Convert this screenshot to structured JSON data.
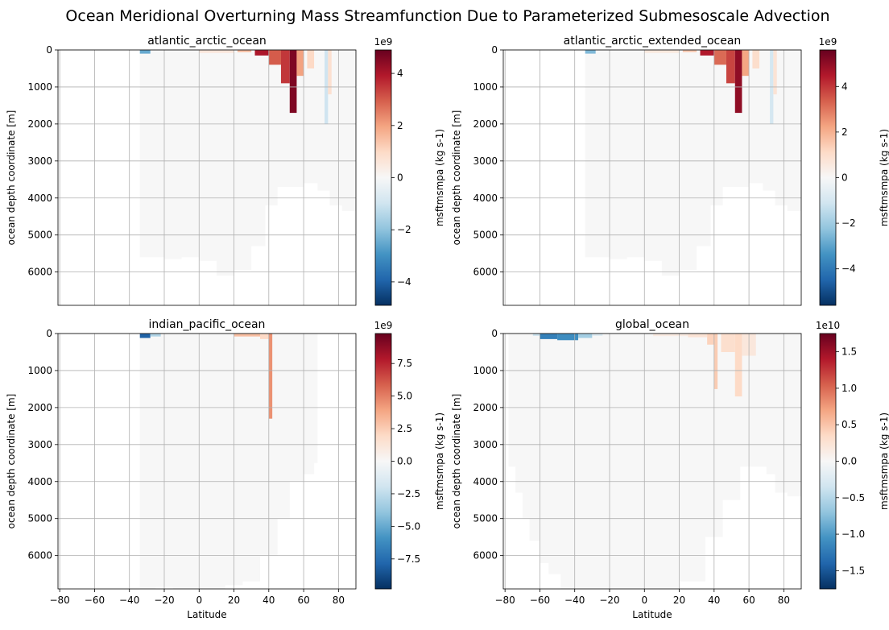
{
  "figure": {
    "suptitle": "Ocean Meridional Overturning Mass Streamfunction Due to Parameterized Submesoscale Advection"
  },
  "colormap": {
    "name": "RdBu_r",
    "stops": [
      "#053061",
      "#2166ac",
      "#4393c3",
      "#92c5de",
      "#d1e5f0",
      "#f7f7f7",
      "#fddbc7",
      "#f4a582",
      "#d6604d",
      "#b2182b",
      "#67001f"
    ]
  },
  "chart_data": [
    {
      "type": "heatmap",
      "title": "atlantic_arctic_ocean",
      "xlabel": "",
      "ylabel": "ocean depth coordinate [m]",
      "xlim": [
        -81,
        90
      ],
      "ylim": [
        6900,
        0
      ],
      "xticks": [],
      "yticks": [
        "0",
        "1000",
        "2000",
        "3000",
        "4000",
        "5000",
        "6000"
      ],
      "grid": true,
      "domain": {
        "x_start": -34,
        "x_end": 90,
        "bottom": [
          [
            -34,
            5600
          ],
          [
            -20,
            5600
          ],
          [
            -10,
            5650
          ],
          [
            0,
            5600
          ],
          [
            10,
            5700
          ],
          [
            20,
            6100
          ],
          [
            30,
            5950
          ],
          [
            38,
            5300
          ],
          [
            45,
            4200
          ],
          [
            50,
            3700
          ],
          [
            60,
            3700
          ],
          [
            68,
            3600
          ],
          [
            75,
            3800
          ],
          [
            82,
            4200
          ],
          [
            90,
            4350
          ]
        ]
      },
      "features": [
        {
          "x": [
            -34,
            -28
          ],
          "depth": [
            0,
            100
          ],
          "value": -2500000000.0
        },
        {
          "x": [
            0,
            20
          ],
          "depth": [
            0,
            80
          ],
          "value": 600000000.0
        },
        {
          "x": [
            22,
            30
          ],
          "depth": [
            0,
            60
          ],
          "value": 1500000000.0
        },
        {
          "x": [
            32,
            40
          ],
          "depth": [
            0,
            150
          ],
          "value": 4000000000.0
        },
        {
          "x": [
            40,
            47
          ],
          "depth": [
            0,
            400
          ],
          "value": 3000000000.0
        },
        {
          "x": [
            47,
            52
          ],
          "depth": [
            0,
            900
          ],
          "value": 3500000000.0
        },
        {
          "x": [
            52,
            56
          ],
          "depth": [
            0,
            1700
          ],
          "value": 4600000000.0
        },
        {
          "x": [
            56,
            60
          ],
          "depth": [
            0,
            700
          ],
          "value": 2000000000.0
        },
        {
          "x": [
            62,
            66
          ],
          "depth": [
            0,
            500
          ],
          "value": 1000000000.0
        },
        {
          "x": [
            72,
            74
          ],
          "depth": [
            0,
            2000
          ],
          "value": -1000000000.0
        },
        {
          "x": [
            74,
            76
          ],
          "depth": [
            0,
            1200
          ],
          "value": 800000000.0
        }
      ],
      "colorbar": {
        "label": "msftmsmpa (kg s-1)",
        "exponent": "1e9",
        "vmin": -4900000000.0,
        "vmax": 4900000000.0,
        "ticks": [
          -4,
          -2,
          0,
          2,
          4
        ],
        "ticklabels": [
          "−4",
          "−2",
          "0",
          "2",
          "4"
        ]
      }
    },
    {
      "type": "heatmap",
      "title": "atlantic_arctic_extended_ocean",
      "xlabel": "",
      "ylabel": "ocean depth coordinate [m]",
      "xlim": [
        -81,
        90
      ],
      "ylim": [
        6900,
        0
      ],
      "xticks": [],
      "yticks": [
        "0",
        "1000",
        "2000",
        "3000",
        "4000",
        "5000",
        "6000"
      ],
      "grid": true,
      "domain": {
        "x_start": -34,
        "x_end": 90,
        "bottom": [
          [
            -34,
            5600
          ],
          [
            -20,
            5600
          ],
          [
            -10,
            5650
          ],
          [
            0,
            5600
          ],
          [
            10,
            5700
          ],
          [
            20,
            6100
          ],
          [
            30,
            5950
          ],
          [
            38,
            5300
          ],
          [
            45,
            4200
          ],
          [
            50,
            3700
          ],
          [
            60,
            3700
          ],
          [
            68,
            3600
          ],
          [
            75,
            3800
          ],
          [
            82,
            4200
          ],
          [
            90,
            4350
          ]
        ]
      },
      "features": [
        {
          "x": [
            -34,
            -28
          ],
          "depth": [
            0,
            100
          ],
          "value": -2500000000.0
        },
        {
          "x": [
            0,
            20
          ],
          "depth": [
            0,
            80
          ],
          "value": 600000000.0
        },
        {
          "x": [
            22,
            30
          ],
          "depth": [
            0,
            60
          ],
          "value": 1500000000.0
        },
        {
          "x": [
            32,
            40
          ],
          "depth": [
            0,
            150
          ],
          "value": 4500000000.0
        },
        {
          "x": [
            40,
            47
          ],
          "depth": [
            0,
            400
          ],
          "value": 3200000000.0
        },
        {
          "x": [
            47,
            52
          ],
          "depth": [
            0,
            900
          ],
          "value": 3800000000.0
        },
        {
          "x": [
            52,
            56
          ],
          "depth": [
            0,
            1700
          ],
          "value": 5000000000.0
        },
        {
          "x": [
            56,
            60
          ],
          "depth": [
            0,
            700
          ],
          "value": 2200000000.0
        },
        {
          "x": [
            62,
            66
          ],
          "depth": [
            0,
            500
          ],
          "value": 1000000000.0
        },
        {
          "x": [
            72,
            74
          ],
          "depth": [
            0,
            2000
          ],
          "value": -1000000000.0
        },
        {
          "x": [
            74,
            76
          ],
          "depth": [
            0,
            1200
          ],
          "value": 800000000.0
        }
      ],
      "colorbar": {
        "label": "msftmsmpa (kg s-1)",
        "exponent": "1e9",
        "vmin": -5600000000.0,
        "vmax": 5600000000.0,
        "ticks": [
          -4,
          -2,
          0,
          2,
          4
        ],
        "ticklabels": [
          "−4",
          "−2",
          "0",
          "2",
          "4"
        ]
      }
    },
    {
      "type": "heatmap",
      "title": "indian_pacific_ocean",
      "xlabel": "Latitude",
      "ylabel": "ocean depth coordinate [m]",
      "xlim": [
        -81,
        90
      ],
      "ylim": [
        6900,
        0
      ],
      "xticks": [
        -80,
        -60,
        -40,
        -20,
        0,
        20,
        40,
        60,
        80
      ],
      "xticklabels": [
        "−80",
        "−60",
        "−40",
        "−20",
        "0",
        "20",
        "40",
        "60",
        "80"
      ],
      "yticks": [
        "0",
        "1000",
        "2000",
        "3000",
        "4000",
        "5000",
        "6000"
      ],
      "grid": true,
      "domain": {
        "x_start": -34,
        "x_end": 68,
        "bottom": [
          [
            -34,
            6900
          ],
          [
            -25,
            6900
          ],
          [
            -15,
            6850
          ],
          [
            -5,
            6900
          ],
          [
            5,
            6900
          ],
          [
            15,
            6900
          ],
          [
            25,
            6800
          ],
          [
            35,
            6700
          ],
          [
            45,
            6000
          ],
          [
            52,
            5000
          ],
          [
            60,
            4000
          ],
          [
            66,
            3800
          ],
          [
            68,
            3500
          ]
        ]
      },
      "features": [
        {
          "x": [
            -34,
            -28
          ],
          "depth": [
            0,
            120
          ],
          "value": -8000000000.0
        },
        {
          "x": [
            -28,
            -22
          ],
          "depth": [
            0,
            80
          ],
          "value": -3000000000.0
        },
        {
          "x": [
            20,
            35
          ],
          "depth": [
            0,
            80
          ],
          "value": 3000000000.0
        },
        {
          "x": [
            35,
            40
          ],
          "depth": [
            0,
            150
          ],
          "value": 2000000000.0
        },
        {
          "x": [
            40,
            42
          ],
          "depth": [
            0,
            2300
          ],
          "value": 4500000000.0
        }
      ],
      "colorbar": {
        "label": "msftmsmpa (kg s-1)",
        "exponent": "1e9",
        "vmin": -9800000000.0,
        "vmax": 9800000000.0,
        "ticks": [
          -7.5,
          -5.0,
          -2.5,
          0.0,
          2.5,
          5.0,
          7.5
        ],
        "ticklabels": [
          "−7.5",
          "−5.0",
          "−2.5",
          "0.0",
          "2.5",
          "5.0",
          "7.5"
        ]
      }
    },
    {
      "type": "heatmap",
      "title": "global_ocean",
      "xlabel": "Latitude",
      "ylabel": "ocean depth coordinate [m]",
      "xlim": [
        -81,
        90
      ],
      "ylim": [
        6900,
        0
      ],
      "xticks": [
        -80,
        -60,
        -40,
        -20,
        0,
        20,
        40,
        60,
        80
      ],
      "xticklabels": [
        "−80",
        "−60",
        "−40",
        "−20",
        "0",
        "20",
        "40",
        "60",
        "80"
      ],
      "yticks": [
        "0",
        "1000",
        "2000",
        "3000",
        "4000",
        "5000",
        "6000"
      ],
      "grid": true,
      "domain": {
        "x_start": -78,
        "x_end": 90,
        "bottom": [
          [
            -78,
            2500
          ],
          [
            -74,
            3600
          ],
          [
            -70,
            4300
          ],
          [
            -66,
            5000
          ],
          [
            -60,
            5600
          ],
          [
            -55,
            6200
          ],
          [
            -48,
            6500
          ],
          [
            -40,
            6900
          ],
          [
            -20,
            6900
          ],
          [
            0,
            6900
          ],
          [
            20,
            6900
          ],
          [
            35,
            6700
          ],
          [
            45,
            5500
          ],
          [
            55,
            4500
          ],
          [
            62,
            3600
          ],
          [
            70,
            3600
          ],
          [
            75,
            3800
          ],
          [
            82,
            4300
          ],
          [
            90,
            4400
          ]
        ]
      },
      "features": [
        {
          "x": [
            -64,
            -60
          ],
          "depth": [
            0,
            60
          ],
          "value": -4000000000.0
        },
        {
          "x": [
            -60,
            -50
          ],
          "depth": [
            0,
            150
          ],
          "value": -12000000000.0
        },
        {
          "x": [
            -50,
            -38
          ],
          "depth": [
            0,
            180
          ],
          "value": -11000000000.0
        },
        {
          "x": [
            -38,
            -30
          ],
          "depth": [
            0,
            120
          ],
          "value": -6000000000.0
        },
        {
          "x": [
            -30,
            -24
          ],
          "depth": [
            0,
            60
          ],
          "value": -2500000000.0
        },
        {
          "x": [
            5,
            25
          ],
          "depth": [
            0,
            70
          ],
          "value": 1500000000.0
        },
        {
          "x": [
            25,
            36
          ],
          "depth": [
            0,
            100
          ],
          "value": 2500000000.0
        },
        {
          "x": [
            36,
            40
          ],
          "depth": [
            0,
            300
          ],
          "value": 4000000000.0
        },
        {
          "x": [
            40,
            42
          ],
          "depth": [
            0,
            1500
          ],
          "value": 4500000000.0
        },
        {
          "x": [
            44,
            52
          ],
          "depth": [
            0,
            500
          ],
          "value": 3000000000.0
        },
        {
          "x": [
            52,
            56
          ],
          "depth": [
            0,
            1700
          ],
          "value": 3500000000.0
        },
        {
          "x": [
            56,
            64
          ],
          "depth": [
            0,
            600
          ],
          "value": 2000000000.0
        }
      ],
      "colorbar": {
        "label": "msftmsmpa (kg s-1)",
        "exponent": "1e10",
        "vmin": -17500000000.0,
        "vmax": 17500000000.0,
        "ticks": [
          -1.5,
          -1.0,
          -0.5,
          0.0,
          0.5,
          1.0,
          1.5
        ],
        "ticklabels": [
          "−1.5",
          "−1.0",
          "−0.5",
          "0.0",
          "0.5",
          "1.0",
          "1.5"
        ]
      }
    }
  ]
}
